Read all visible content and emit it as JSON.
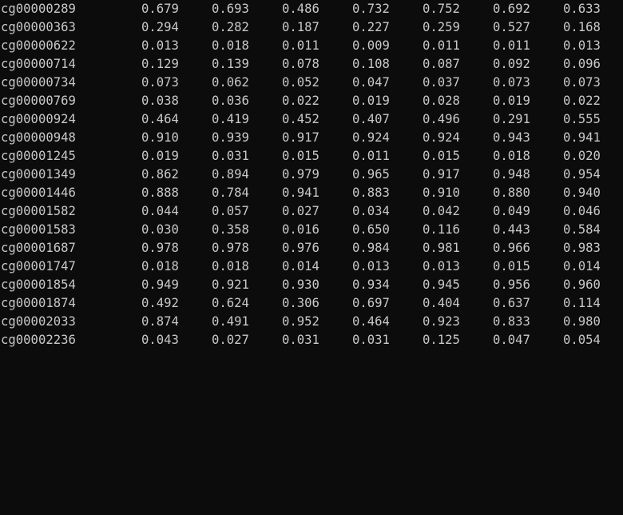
{
  "colors": {
    "background": "#0c0c0c",
    "text": "#c8c8c8"
  },
  "rows": [
    {
      "id": "cg00000289",
      "values": [
        "0.679",
        "0.693",
        "0.486",
        "0.732",
        "0.752",
        "0.692",
        "0.633"
      ]
    },
    {
      "id": "cg00000363",
      "values": [
        "0.294",
        "0.282",
        "0.187",
        "0.227",
        "0.259",
        "0.527",
        "0.168"
      ]
    },
    {
      "id": "cg00000622",
      "values": [
        "0.013",
        "0.018",
        "0.011",
        "0.009",
        "0.011",
        "0.011",
        "0.013"
      ]
    },
    {
      "id": "cg00000714",
      "values": [
        "0.129",
        "0.139",
        "0.078",
        "0.108",
        "0.087",
        "0.092",
        "0.096"
      ]
    },
    {
      "id": "cg00000734",
      "values": [
        "0.073",
        "0.062",
        "0.052",
        "0.047",
        "0.037",
        "0.073",
        "0.073"
      ]
    },
    {
      "id": "cg00000769",
      "values": [
        "0.038",
        "0.036",
        "0.022",
        "0.019",
        "0.028",
        "0.019",
        "0.022"
      ]
    },
    {
      "id": "cg00000924",
      "values": [
        "0.464",
        "0.419",
        "0.452",
        "0.407",
        "0.496",
        "0.291",
        "0.555"
      ]
    },
    {
      "id": "cg00000948",
      "values": [
        "0.910",
        "0.939",
        "0.917",
        "0.924",
        "0.924",
        "0.943",
        "0.941"
      ]
    },
    {
      "id": "cg00001245",
      "values": [
        "0.019",
        "0.031",
        "0.015",
        "0.011",
        "0.015",
        "0.018",
        "0.020"
      ]
    },
    {
      "id": "cg00001349",
      "values": [
        "0.862",
        "0.894",
        "0.979",
        "0.965",
        "0.917",
        "0.948",
        "0.954"
      ]
    },
    {
      "id": "cg00001446",
      "values": [
        "0.888",
        "0.784",
        "0.941",
        "0.883",
        "0.910",
        "0.880",
        "0.940"
      ]
    },
    {
      "id": "cg00001582",
      "values": [
        "0.044",
        "0.057",
        "0.027",
        "0.034",
        "0.042",
        "0.049",
        "0.046"
      ]
    },
    {
      "id": "cg00001583",
      "values": [
        "0.030",
        "0.358",
        "0.016",
        "0.650",
        "0.116",
        "0.443",
        "0.584"
      ]
    },
    {
      "id": "cg00001687",
      "values": [
        "0.978",
        "0.978",
        "0.976",
        "0.984",
        "0.981",
        "0.966",
        "0.983"
      ]
    },
    {
      "id": "cg00001747",
      "values": [
        "0.018",
        "0.018",
        "0.014",
        "0.013",
        "0.013",
        "0.015",
        "0.014"
      ]
    },
    {
      "id": "cg00001854",
      "values": [
        "0.949",
        "0.921",
        "0.930",
        "0.934",
        "0.945",
        "0.956",
        "0.960"
      ]
    },
    {
      "id": "cg00001874",
      "values": [
        "0.492",
        "0.624",
        "0.306",
        "0.697",
        "0.404",
        "0.637",
        "0.114"
      ]
    },
    {
      "id": "cg00002033",
      "values": [
        "0.874",
        "0.491",
        "0.952",
        "0.464",
        "0.923",
        "0.833",
        "0.980"
      ]
    },
    {
      "id": "cg00002236",
      "values": [
        "0.043",
        "0.027",
        "0.031",
        "0.031",
        "0.125",
        "0.047",
        "0.054"
      ]
    }
  ]
}
